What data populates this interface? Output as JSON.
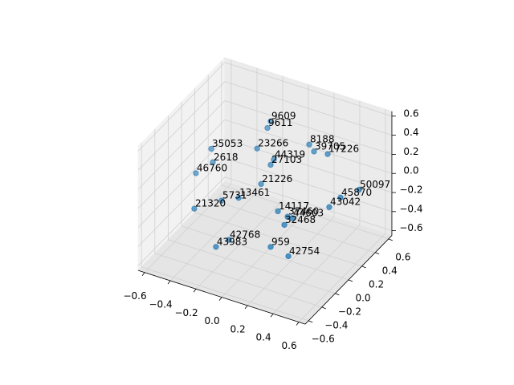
{
  "chart_data": {
    "type": "scatter3d",
    "labels": [
      "9609",
      "9611",
      "8188",
      "39705",
      "17226",
      "35053",
      "23266",
      "44319",
      "27103",
      "2618",
      "46760",
      "21226",
      "50097",
      "45870",
      "43042",
      "13461",
      "5731",
      "21320",
      "14117",
      "37460",
      "44603",
      "32468",
      "42768",
      "43983",
      "959",
      "42754"
    ],
    "x": [
      -0.088,
      -0.096,
      0.181,
      0.222,
      0.307,
      -0.391,
      -0.121,
      -0.002,
      -0.013,
      -0.359,
      -0.44,
      -0.036,
      0.555,
      0.458,
      0.408,
      -0.144,
      -0.24,
      -0.388,
      0.111,
      0.178,
      0.209,
      0.173,
      -0.129,
      -0.193,
      0.131,
      0.251
    ],
    "y": [
      0.254,
      0.221,
      0.314,
      0.307,
      0.348,
      -0.053,
      0.114,
      0.136,
      0.109,
      -0.091,
      -0.189,
      0.01,
      0.34,
      0.249,
      0.177,
      -0.119,
      -0.188,
      -0.313,
      -0.021,
      -0.005,
      0.007,
      -0.044,
      -0.293,
      -0.364,
      -0.168,
      -0.134
    ],
    "z": [
      0.51,
      0.46,
      0.34,
      0.29,
      0.27,
      0.31,
      0.31,
      0.23,
      0.19,
      0.21,
      0.13,
      0.05,
      0.01,
      -0.05,
      -0.12,
      -0.05,
      -0.07,
      -0.13,
      -0.15,
      -0.19,
      -0.2,
      -0.25,
      -0.36,
      -0.41,
      -0.41,
      -0.48
    ],
    "color": "#1f77b4",
    "xlim": [
      -0.65,
      0.65
    ],
    "ylim": [
      -0.65,
      0.65
    ],
    "zlim": [
      -0.65,
      0.65
    ],
    "xticks": [
      {
        "value": -0.6,
        "label": "−0.6"
      },
      {
        "value": -0.4,
        "label": "−0.4"
      },
      {
        "value": -0.2,
        "label": "−0.2"
      },
      {
        "value": 0,
        "label": "0.0"
      },
      0.2,
      0.4,
      0.6
    ],
    "yticks": [
      {
        "value": -0.6,
        "label": "−0.6"
      },
      {
        "value": -0.4,
        "label": "−0.4"
      },
      {
        "value": -0.2,
        "label": "−0.2"
      },
      {
        "value": 0,
        "label": "0.0"
      },
      0.2,
      0.4,
      0.6
    ],
    "zticks": [
      {
        "value": -0.6,
        "label": "−0.6"
      },
      {
        "value": -0.4,
        "label": "−0.4"
      },
      {
        "value": -0.2,
        "label": "−0.2"
      },
      {
        "value": 0,
        "label": "0.0"
      },
      0.2,
      0.4,
      0.6
    ],
    "grid": true
  }
}
